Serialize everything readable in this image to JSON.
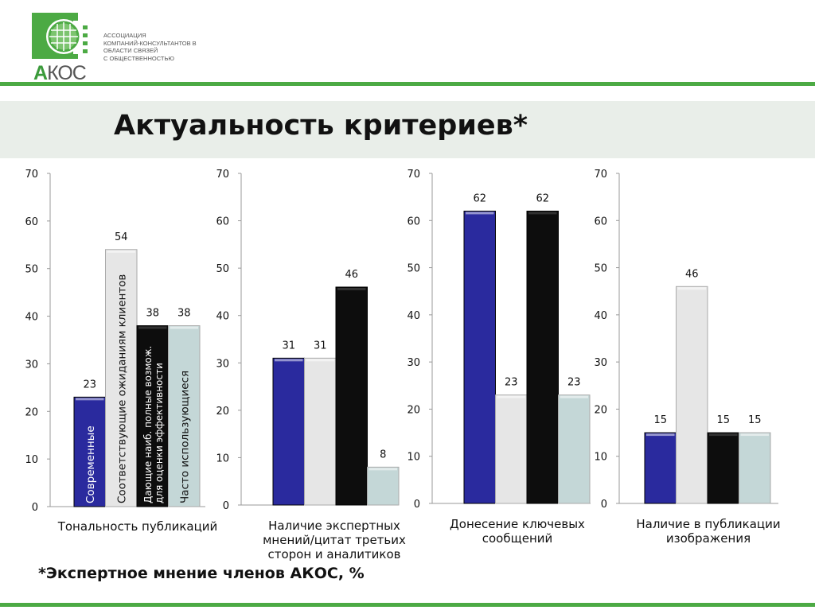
{
  "logo": {
    "lines": [
      "АССОЦИАЦИЯ",
      "КОМПАНИЙ-КОНСУЛЬТАНТОВ В",
      "ОБЛАСТИ СВЯЗЕЙ",
      "С ОБЩЕСТВЕННОСТЬЮ"
    ],
    "akos_a": "А",
    "akos_rest": "КОС"
  },
  "title": "Актуальность критериев*",
  "footnote": "*Экспертное мнение членов АКОС, %",
  "colors": [
    "#2a2a9e",
    "#e6e6e6",
    "#0d0d0d",
    "#c4d7d7"
  ],
  "chart_data": [
    {
      "type": "bar",
      "xlabel": "Тональность публикаций",
      "ylim": [
        0,
        70
      ],
      "yticks": [
        0,
        10,
        20,
        30,
        40,
        50,
        60,
        70
      ],
      "values": [
        23,
        54,
        38,
        38
      ],
      "bar_labels": [
        [
          "Современные"
        ],
        [
          "Соответствующие ожиданиям клиентов"
        ],
        [
          "Дающие наиб. полные возмож.",
          "для оценки эффективности"
        ],
        [
          "Часто использующиеся"
        ]
      ]
    },
    {
      "type": "bar",
      "xlabel": "Наличие экспертных мнений/цитат третьих сторон и аналитиков",
      "ylim": [
        0,
        70
      ],
      "yticks": [
        0,
        10,
        20,
        30,
        40,
        50,
        60,
        70
      ],
      "values": [
        31,
        31,
        46,
        8
      ]
    },
    {
      "type": "bar",
      "xlabel": "Донесение ключевых сообщений",
      "ylim": [
        0,
        70
      ],
      "yticks": [
        0,
        10,
        20,
        30,
        40,
        50,
        60,
        70
      ],
      "values": [
        62,
        23,
        62,
        23
      ]
    },
    {
      "type": "bar",
      "xlabel": "Наличие в публикации изображения",
      "ylim": [
        0,
        70
      ],
      "yticks": [
        0,
        10,
        20,
        30,
        40,
        50,
        60,
        70
      ],
      "values": [
        15,
        46,
        15,
        15
      ]
    }
  ]
}
